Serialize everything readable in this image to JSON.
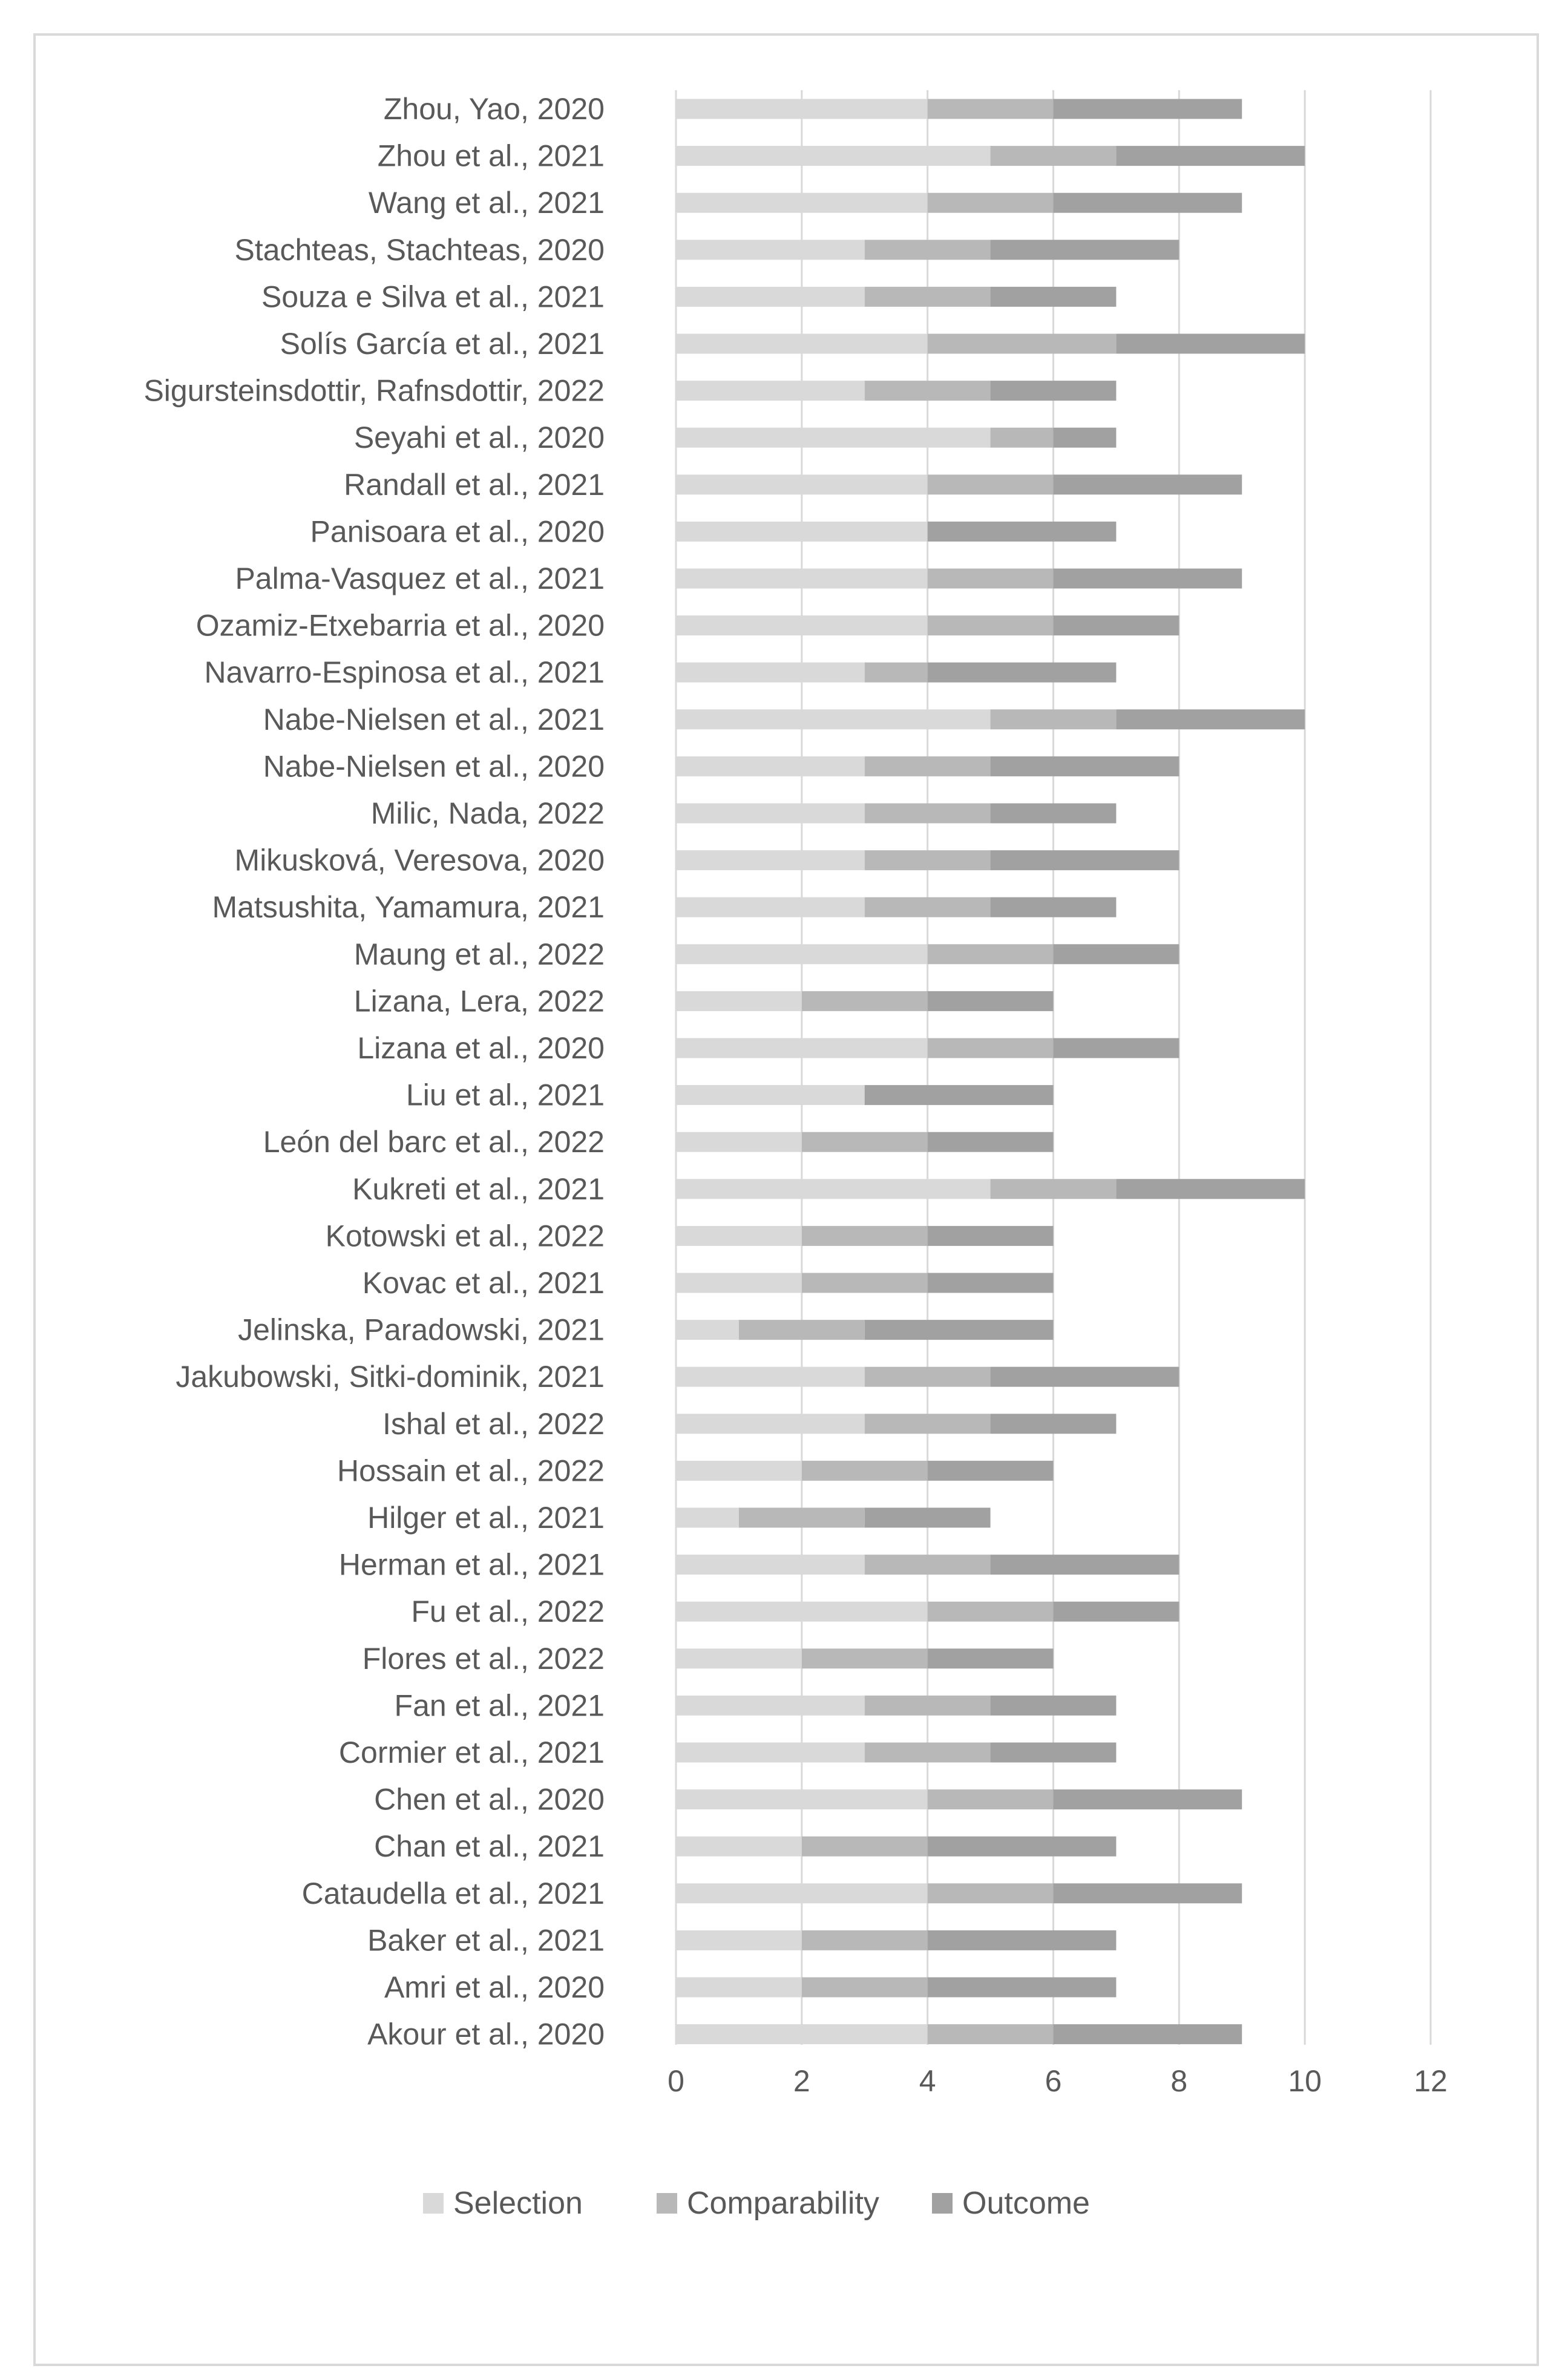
{
  "chart_data": {
    "type": "bar",
    "orientation": "horizontal",
    "stacked": true,
    "title": "",
    "xlabel": "",
    "ylabel": "",
    "xlim": [
      0,
      12
    ],
    "x_ticks": [
      "0",
      "2",
      "4",
      "6",
      "8",
      "10",
      "12"
    ],
    "grid": true,
    "legend_position": "bottom",
    "categories": [
      "Zhou, Yao, 2020",
      "Zhou et al., 2021",
      "Wang et al., 2021",
      "Stachteas, Stachteas, 2020",
      "Souza e Silva et al., 2021",
      "Solís García et al., 2021",
      "Sigursteinsdottir, Rafnsdottir, 2022",
      "Seyahi et al., 2020",
      "Randall et al., 2021",
      "Panisoara et al., 2020",
      "Palma-Vasquez et al., 2021",
      "Ozamiz-Etxebarria et al., 2020",
      "Navarro-Espinosa et al., 2021",
      "Nabe-Nielsen et al., 2021",
      "Nabe-Nielsen et al., 2020",
      "Milic, Nada, 2022",
      "Mikusková, Veresova, 2020",
      "Matsushita, Yamamura, 2021",
      "Maung et al., 2022",
      "Lizana, Lera, 2022",
      "Lizana et al., 2020",
      "Liu et al., 2021",
      "León del barc et al., 2022",
      "Kukreti et al., 2021",
      "Kotowski et al., 2022",
      "Kovac et al., 2021",
      "Jelinska, Paradowski, 2021",
      "Jakubowski, Sitki-dominik, 2021",
      "Ishal et al., 2022",
      "Hossain et al., 2022",
      "Hilger et al., 2021",
      "Herman et al., 2021",
      "Fu et al., 2022",
      "Flores et al., 2022",
      "Fan et al., 2021",
      "Cormier et al., 2021",
      "Chen et al., 2020",
      "Chan et al., 2021",
      "Cataudella et al., 2021",
      "Baker et al., 2021",
      "Amri et al., 2020",
      "Akour et al., 2020"
    ],
    "series": [
      {
        "name": "Selection",
        "color": "#d9d9d9",
        "values": [
          4,
          5,
          4,
          3,
          3,
          4,
          3,
          5,
          4,
          4,
          4,
          4,
          3,
          5,
          3,
          3,
          3,
          3,
          4,
          2,
          4,
          3,
          2,
          5,
          2,
          2,
          1,
          3,
          3,
          2,
          1,
          3,
          4,
          2,
          3,
          3,
          4,
          2,
          4,
          2,
          2,
          4
        ]
      },
      {
        "name": "Comparability",
        "color": "#b8b8b8",
        "values": [
          2,
          2,
          2,
          2,
          2,
          3,
          2,
          1,
          2,
          0,
          2,
          2,
          1,
          2,
          2,
          2,
          2,
          2,
          2,
          2,
          2,
          0,
          2,
          2,
          2,
          2,
          2,
          2,
          2,
          2,
          2,
          2,
          2,
          2,
          2,
          2,
          2,
          2,
          2,
          2,
          2,
          2
        ]
      },
      {
        "name": "Outcome",
        "color": "#a1a1a1",
        "values": [
          3,
          3,
          3,
          3,
          2,
          3,
          2,
          1,
          3,
          3,
          3,
          2,
          3,
          3,
          3,
          2,
          3,
          2,
          2,
          2,
          2,
          3,
          2,
          3,
          2,
          2,
          3,
          3,
          2,
          2,
          2,
          3,
          2,
          2,
          2,
          2,
          3,
          3,
          3,
          3,
          3,
          3
        ]
      }
    ]
  }
}
